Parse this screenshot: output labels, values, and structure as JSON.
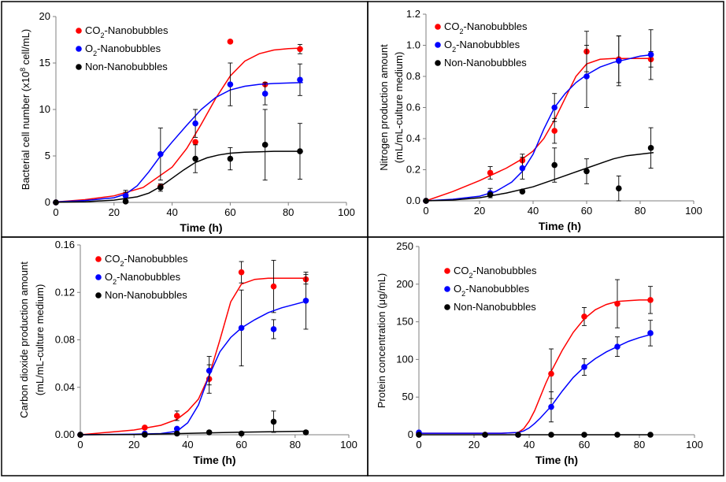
{
  "chart_data": [
    {
      "type": "scatter",
      "xlabel": "Time (h)",
      "ylabel": [
        "Bacterial cell number (x10",
        "8",
        " cell/mL)"
      ],
      "xlim": [
        0,
        100
      ],
      "xticks": [
        0,
        20,
        40,
        60,
        80,
        100
      ],
      "ylim": [
        0,
        20
      ],
      "yticks": [
        0,
        5,
        10,
        15,
        20
      ],
      "ytick_labels": [
        "0",
        "5",
        "10",
        "15",
        "20"
      ],
      "legend_position": "top-left",
      "series": [
        {
          "name": [
            "CO",
            "2",
            "-Nanobubbles"
          ],
          "color": "#ff0000",
          "x": [
            0,
            24,
            36,
            48,
            60,
            72,
            84
          ],
          "y": [
            0,
            0.8,
            1.7,
            6.5,
            17.3,
            12.7,
            16.5
          ],
          "err": [
            0,
            0.5,
            0,
            0,
            0,
            0,
            0.5
          ],
          "fit_x": [
            0,
            10,
            20,
            30,
            40,
            45,
            50,
            55,
            60,
            65,
            70,
            75,
            80,
            85
          ],
          "fit_y": [
            0.05,
            0.3,
            0.7,
            1.6,
            3.8,
            5.8,
            8.4,
            11.2,
            13.6,
            15.2,
            16.0,
            16.4,
            16.55,
            16.6
          ]
        },
        {
          "name": [
            "O",
            "2",
            "-Nanobubbles"
          ],
          "color": "#0000ff",
          "x": [
            0,
            24,
            36,
            48,
            60,
            72,
            84
          ],
          "y": [
            0,
            0.7,
            5.2,
            8.5,
            12.7,
            11.7,
            13.2
          ],
          "err": [
            0,
            0.4,
            2.8,
            1.5,
            2.3,
            1.2,
            1.7
          ],
          "fit_x": [
            0,
            10,
            20,
            24,
            28,
            32,
            36,
            40,
            45,
            50,
            55,
            60,
            65,
            70,
            75,
            80,
            85
          ],
          "fit_y": [
            0.05,
            0.2,
            0.5,
            0.9,
            1.8,
            3.3,
            5.0,
            6.5,
            8.3,
            10.0,
            11.3,
            12.1,
            12.5,
            12.7,
            12.8,
            12.85,
            12.9
          ]
        },
        {
          "name": [
            "Non-Nanobubbles"
          ],
          "color": "#000000",
          "x": [
            0,
            24,
            36,
            48,
            60,
            72,
            84
          ],
          "y": [
            0,
            0.1,
            1.6,
            4.7,
            4.7,
            6.2,
            5.5
          ],
          "err": [
            0,
            0,
            0.4,
            1.5,
            1.2,
            3.8,
            3.0
          ],
          "fit_x": [
            0,
            10,
            20,
            28,
            32,
            36,
            40,
            44,
            48,
            52,
            56,
            60,
            65,
            70,
            75,
            80,
            85
          ],
          "fit_y": [
            0.02,
            0.08,
            0.25,
            0.6,
            1.0,
            1.7,
            2.6,
            3.5,
            4.3,
            4.8,
            5.1,
            5.3,
            5.4,
            5.45,
            5.5,
            5.5,
            5.5
          ]
        }
      ]
    },
    {
      "type": "scatter",
      "xlabel": "Time (h)",
      "ylabel": [
        "Nitrogen production amount"
      ],
      "ylabel2": "(mL/mL-culture medium)",
      "xlim": [
        0,
        100
      ],
      "xticks": [
        0,
        20,
        40,
        60,
        80,
        100
      ],
      "ylim": [
        0,
        1.2
      ],
      "yticks": [
        0,
        0.2,
        0.4,
        0.6,
        0.8,
        1.0,
        1.2
      ],
      "ytick_labels": [
        "0.0",
        "0.2",
        "0.4",
        "0.6",
        "0.8",
        "1.0",
        "1.2"
      ],
      "legend_position": "top-left",
      "series": [
        {
          "name": [
            "CO",
            "2",
            "-Nanobubbles"
          ],
          "color": "#ff0000",
          "x": [
            0,
            24,
            36,
            48,
            60,
            72,
            84
          ],
          "y": [
            0,
            0.18,
            0.26,
            0.45,
            0.96,
            0.91,
            0.91
          ],
          "err": [
            0,
            0.04,
            0.04,
            0.08,
            0.13,
            0.15,
            0.05
          ],
          "fit_x": [
            0,
            10,
            20,
            30,
            36,
            40,
            44,
            48,
            52,
            56,
            60,
            65,
            70,
            75,
            80,
            85
          ],
          "fit_y": [
            0,
            0.06,
            0.13,
            0.21,
            0.27,
            0.32,
            0.4,
            0.52,
            0.66,
            0.8,
            0.88,
            0.91,
            0.915,
            0.915,
            0.915,
            0.915
          ]
        },
        {
          "name": [
            "O",
            "2",
            "-Nanobubbles"
          ],
          "color": "#0000ff",
          "x": [
            0,
            24,
            36,
            48,
            60,
            72,
            84
          ],
          "y": [
            0,
            0.05,
            0.21,
            0.6,
            0.8,
            0.9,
            0.94
          ],
          "err": [
            0,
            0.03,
            0.07,
            0.09,
            0.2,
            0.16,
            0.16
          ],
          "fit_x": [
            0,
            10,
            20,
            26,
            32,
            36,
            40,
            44,
            48,
            52,
            56,
            60,
            65,
            70,
            75,
            80,
            85
          ],
          "fit_y": [
            0,
            0.01,
            0.03,
            0.06,
            0.12,
            0.19,
            0.3,
            0.46,
            0.6,
            0.69,
            0.76,
            0.81,
            0.86,
            0.89,
            0.91,
            0.93,
            0.94
          ]
        },
        {
          "name": [
            "Non-Nanobubbles"
          ],
          "color": "#000000",
          "x": [
            0,
            24,
            36,
            48,
            60,
            72,
            84
          ],
          "y": [
            0,
            0.04,
            0.06,
            0.23,
            0.19,
            0.08,
            0.34
          ],
          "err": [
            0,
            0,
            0,
            0.11,
            0.08,
            0.08,
            0.13
          ],
          "fit_x": [
            0,
            10,
            20,
            30,
            40,
            50,
            55,
            60,
            65,
            70,
            75,
            80,
            85
          ],
          "fit_y": [
            0,
            0.005,
            0.02,
            0.05,
            0.09,
            0.15,
            0.18,
            0.21,
            0.24,
            0.27,
            0.29,
            0.3,
            0.31
          ]
        }
      ]
    },
    {
      "type": "scatter",
      "xlabel": "Time (h)",
      "ylabel": [
        "Carbon dioxide production amount"
      ],
      "ylabel2": "(mL/mL-culture medium)",
      "xlim": [
        0,
        100
      ],
      "xticks": [
        0,
        20,
        40,
        60,
        80,
        100
      ],
      "ylim": [
        0,
        0.16
      ],
      "yticks": [
        0,
        0.04,
        0.08,
        0.12,
        0.16
      ],
      "ytick_labels": [
        "0.00",
        "0.04",
        "0.08",
        "0.12",
        "0.16"
      ],
      "legend_position": "top-left",
      "series": [
        {
          "name": [
            "CO",
            "2",
            "-Nanobubbles"
          ],
          "color": "#ff0000",
          "x": [
            0,
            24,
            36,
            48,
            60,
            72,
            84
          ],
          "y": [
            0,
            0.006,
            0.016,
            0.047,
            0.137,
            0.125,
            0.131
          ],
          "err": [
            0,
            0,
            0.004,
            0.012,
            0.009,
            0.022,
            0.004
          ],
          "fit_x": [
            0,
            10,
            20,
            30,
            36,
            40,
            44,
            48,
            52,
            56,
            60,
            65,
            70,
            75,
            80,
            85
          ],
          "fit_y": [
            0,
            0.002,
            0.004,
            0.008,
            0.013,
            0.02,
            0.03,
            0.05,
            0.08,
            0.112,
            0.127,
            0.131,
            0.132,
            0.132,
            0.132,
            0.132
          ]
        },
        {
          "name": [
            "O",
            "2",
            "-Nanobubbles"
          ],
          "color": "#0000ff",
          "x": [
            0,
            24,
            36,
            48,
            60,
            72,
            84
          ],
          "y": [
            0,
            0.001,
            0.005,
            0.054,
            0.09,
            0.089,
            0.113
          ],
          "err": [
            0,
            0,
            0,
            0.012,
            0.032,
            0.008,
            0.024
          ],
          "fit_x": [
            0,
            20,
            30,
            36,
            40,
            44,
            48,
            52,
            56,
            60,
            65,
            70,
            75,
            80,
            85
          ],
          "fit_y": [
            0,
            0.0005,
            0.001,
            0.003,
            0.01,
            0.025,
            0.05,
            0.07,
            0.082,
            0.09,
            0.097,
            0.103,
            0.107,
            0.11,
            0.113
          ]
        },
        {
          "name": [
            "Non-Nanobubbles"
          ],
          "color": "#000000",
          "x": [
            0,
            24,
            36,
            48,
            60,
            72,
            84
          ],
          "y": [
            0,
            0,
            0.001,
            0.002,
            0.001,
            0.011,
            0.002
          ],
          "err": [
            0,
            0,
            0,
            0,
            0,
            0.009,
            0
          ],
          "fit_x": [
            0,
            20,
            40,
            60,
            85
          ],
          "fit_y": [
            0,
            0.0002,
            0.0012,
            0.0022,
            0.003
          ]
        }
      ]
    },
    {
      "type": "scatter",
      "xlabel": "Time (h)",
      "ylabel": [
        "Protein concentration (μg/mL)"
      ],
      "xlim": [
        0,
        100
      ],
      "xticks": [
        0,
        20,
        40,
        60,
        80,
        100
      ],
      "ylim": [
        0,
        250
      ],
      "yticks": [
        0,
        50,
        100,
        150,
        200,
        250
      ],
      "ytick_labels": [
        "0",
        "50",
        "100",
        "150",
        "200",
        "250"
      ],
      "legend_position": "top-center",
      "series": [
        {
          "name": [
            "CO",
            "2",
            "-Nanobubbles"
          ],
          "color": "#ff0000",
          "x": [
            0,
            24,
            36,
            48,
            60,
            72,
            84
          ],
          "y": [
            2,
            0,
            0,
            81,
            157,
            174,
            179
          ],
          "err": [
            0,
            0,
            0,
            33,
            12,
            32,
            18
          ],
          "fit_x": [
            0,
            20,
            30,
            36,
            38,
            40,
            42,
            44,
            46,
            48,
            52,
            56,
            60,
            64,
            68,
            72,
            76,
            80,
            85
          ],
          "fit_y": [
            2,
            2,
            2,
            3,
            8,
            18,
            32,
            50,
            68,
            84,
            112,
            136,
            154,
            166,
            173,
            177,
            178,
            179,
            179
          ]
        },
        {
          "name": [
            "O",
            "2",
            "-Nanobubbles"
          ],
          "color": "#0000ff",
          "x": [
            0,
            24,
            36,
            48,
            60,
            72,
            84
          ],
          "y": [
            3,
            0,
            0,
            37,
            90,
            117,
            135
          ],
          "err": [
            0,
            0,
            0,
            20,
            11,
            13,
            17
          ],
          "fit_x": [
            0,
            20,
            30,
            36,
            38,
            40,
            42,
            44,
            48,
            52,
            56,
            60,
            64,
            68,
            72,
            76,
            80,
            85
          ],
          "fit_y": [
            2,
            2,
            2,
            3,
            5,
            9,
            15,
            22,
            38,
            58,
            76,
            90,
            101,
            110,
            117,
            124,
            129,
            134
          ]
        },
        {
          "name": [
            "Non-Nanobubbles"
          ],
          "color": "#000000",
          "x": [
            0,
            24,
            36,
            48,
            60,
            72,
            84
          ],
          "y": [
            0,
            0,
            0,
            0,
            0,
            0,
            0
          ],
          "err": [
            0,
            0,
            0,
            0,
            0,
            0,
            0
          ],
          "fit_x": [
            0,
            85
          ],
          "fit_y": [
            0,
            0
          ]
        }
      ]
    }
  ]
}
